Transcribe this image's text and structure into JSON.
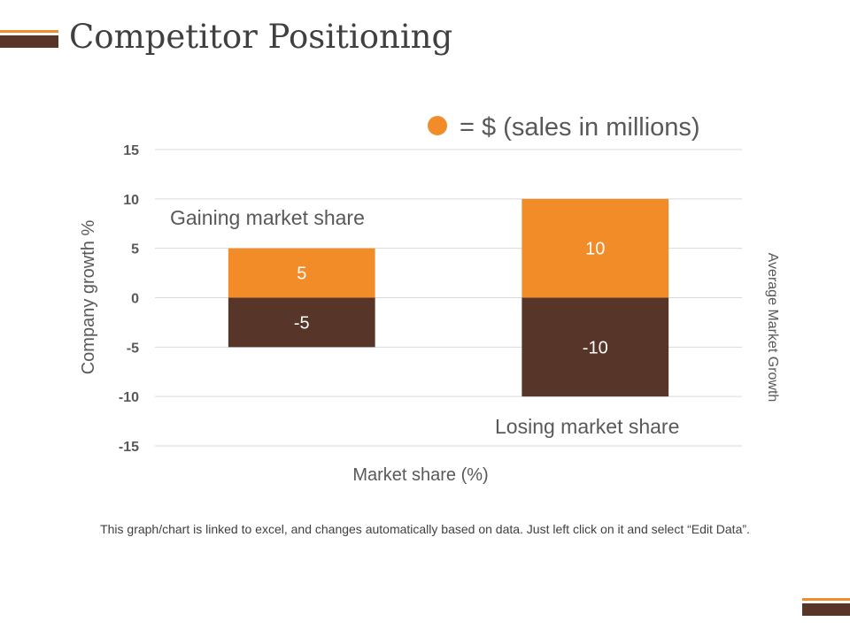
{
  "page": {
    "title": "Competitor Positioning",
    "footnote": "This graph/chart is linked to excel, and changes automatically based on data. Just left click on it and select “Edit Data”."
  },
  "colors": {
    "accent": "#f28c28",
    "dark": "#573629",
    "grid": "#d9d9d9",
    "text": "#595959",
    "bar_label": "#ffffff"
  },
  "chart_data": {
    "type": "bar",
    "stacked": true,
    "categories": [
      "",
      ""
    ],
    "series": [
      {
        "values": [
          5,
          10
        ],
        "color": "#f28c28"
      },
      {
        "values": [
          -5,
          -10
        ],
        "color": "#573629"
      }
    ],
    "data_labels": [
      [
        "5",
        "10"
      ],
      [
        "-5",
        "-10"
      ]
    ],
    "ylim": [
      -15,
      15
    ],
    "yticks": [
      15,
      10,
      5,
      0,
      -5,
      -10,
      -15
    ],
    "xlabel": "Market share (%)",
    "ylabel": "Company growth %",
    "y2label": "Average Market Growth",
    "legend": {
      "label": "= $ (sales in millions)",
      "position": "top-right"
    },
    "annotations": [
      "Gaining market share",
      "Losing market share"
    ],
    "grid": true
  }
}
